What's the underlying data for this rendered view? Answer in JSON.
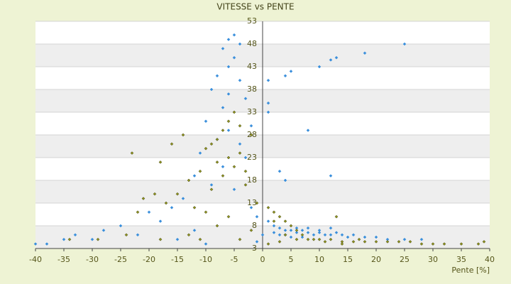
{
  "chart_data": {
    "type": "scatter",
    "title": "VITESSE vs PENTE",
    "x_label": "Pente [%]",
    "xlim": [
      -40,
      40
    ],
    "xticks": [
      -40,
      -35,
      -30,
      -25,
      -20,
      -15,
      -10,
      -5,
      0,
      5,
      10,
      15,
      20,
      25,
      30,
      35,
      40
    ],
    "ylim": [
      3,
      53
    ],
    "yticks": [
      3,
      8,
      13,
      18,
      23,
      28,
      33,
      38,
      43,
      48,
      53
    ],
    "grid": true,
    "series": [
      {
        "color": "#3a8fdc",
        "x": [
          -5,
          -6,
          -4,
          -7,
          -5,
          -6,
          -8,
          -4,
          -9,
          -6,
          -3,
          -7,
          -5,
          -10,
          -2,
          -6,
          -8,
          -4,
          -11,
          -3,
          -7,
          -12,
          -9,
          -5,
          -14,
          -16,
          -20,
          -18,
          -25,
          -28,
          -33,
          -35,
          -38,
          -40,
          -30,
          -22,
          -12,
          -8,
          -15,
          -10,
          -2,
          -1,
          1,
          2,
          3,
          4,
          5,
          6,
          7,
          8,
          9,
          10,
          11,
          12,
          13,
          14,
          15,
          16,
          18,
          20,
          22,
          25,
          28,
          4,
          6,
          8,
          3,
          5,
          7,
          2,
          10,
          12,
          25,
          18,
          13,
          12,
          10,
          5,
          4,
          1,
          8,
          3,
          12,
          4,
          1,
          1,
          -1,
          0
        ],
        "values": [
          50,
          49,
          48,
          47,
          45,
          43,
          41,
          40,
          38,
          37,
          36,
          34,
          33,
          31,
          30,
          29,
          27,
          26,
          24,
          23,
          21,
          19,
          17,
          16,
          14,
          12,
          11,
          9,
          8,
          7,
          6,
          5,
          4,
          4,
          5,
          6,
          7,
          8,
          5,
          4,
          12,
          10,
          9,
          8,
          7.5,
          7,
          7,
          6.5,
          7,
          6.5,
          6,
          6.5,
          6,
          6,
          6.5,
          6,
          5.5,
          6,
          5.5,
          5.5,
          5,
          5,
          5,
          6,
          7.5,
          7.5,
          6,
          5.5,
          5.5,
          6.5,
          7,
          7.5,
          48,
          46,
          45,
          44.5,
          43,
          42,
          41,
          40,
          29,
          20,
          19,
          18,
          35,
          33,
          4.5,
          6
        ]
      },
      {
        "color": "#8f9420",
        "x": [
          -5,
          -6,
          -7,
          -8,
          -9,
          -10,
          -4,
          -6,
          -8,
          -5,
          -3,
          -11,
          -7,
          -13,
          -9,
          -15,
          -19,
          -21,
          -17,
          -12,
          -10,
          -22,
          -23,
          -18,
          -14,
          -16,
          -4,
          -2,
          -3,
          -1,
          -6,
          -8,
          -13,
          -18,
          -24,
          -29,
          -34,
          -11,
          -4,
          -2,
          1,
          2,
          3,
          4,
          5,
          6,
          7,
          8,
          9,
          10,
          11,
          12,
          14,
          16,
          18,
          20,
          22,
          24,
          26,
          28,
          30,
          32,
          35,
          38,
          39,
          13,
          14,
          17,
          2,
          4,
          6,
          3,
          1
        ],
        "values": [
          33,
          31,
          29,
          27,
          26,
          25,
          24,
          23,
          22,
          21,
          20,
          20,
          19,
          18,
          16,
          15,
          15,
          14,
          13,
          12,
          11,
          11,
          24,
          22,
          28,
          26,
          30,
          28,
          17,
          13,
          10,
          8,
          6,
          5,
          6,
          5,
          5,
          5,
          5,
          7,
          12,
          11,
          10,
          9,
          8,
          7,
          6,
          5,
          5,
          5,
          4.5,
          5,
          4.5,
          4.5,
          4.5,
          4.5,
          4.5,
          4.5,
          4.5,
          4,
          4,
          4,
          4,
          4,
          4.5,
          10,
          4,
          5,
          9,
          6,
          5,
          4.5,
          4
        ]
      }
    ]
  }
}
